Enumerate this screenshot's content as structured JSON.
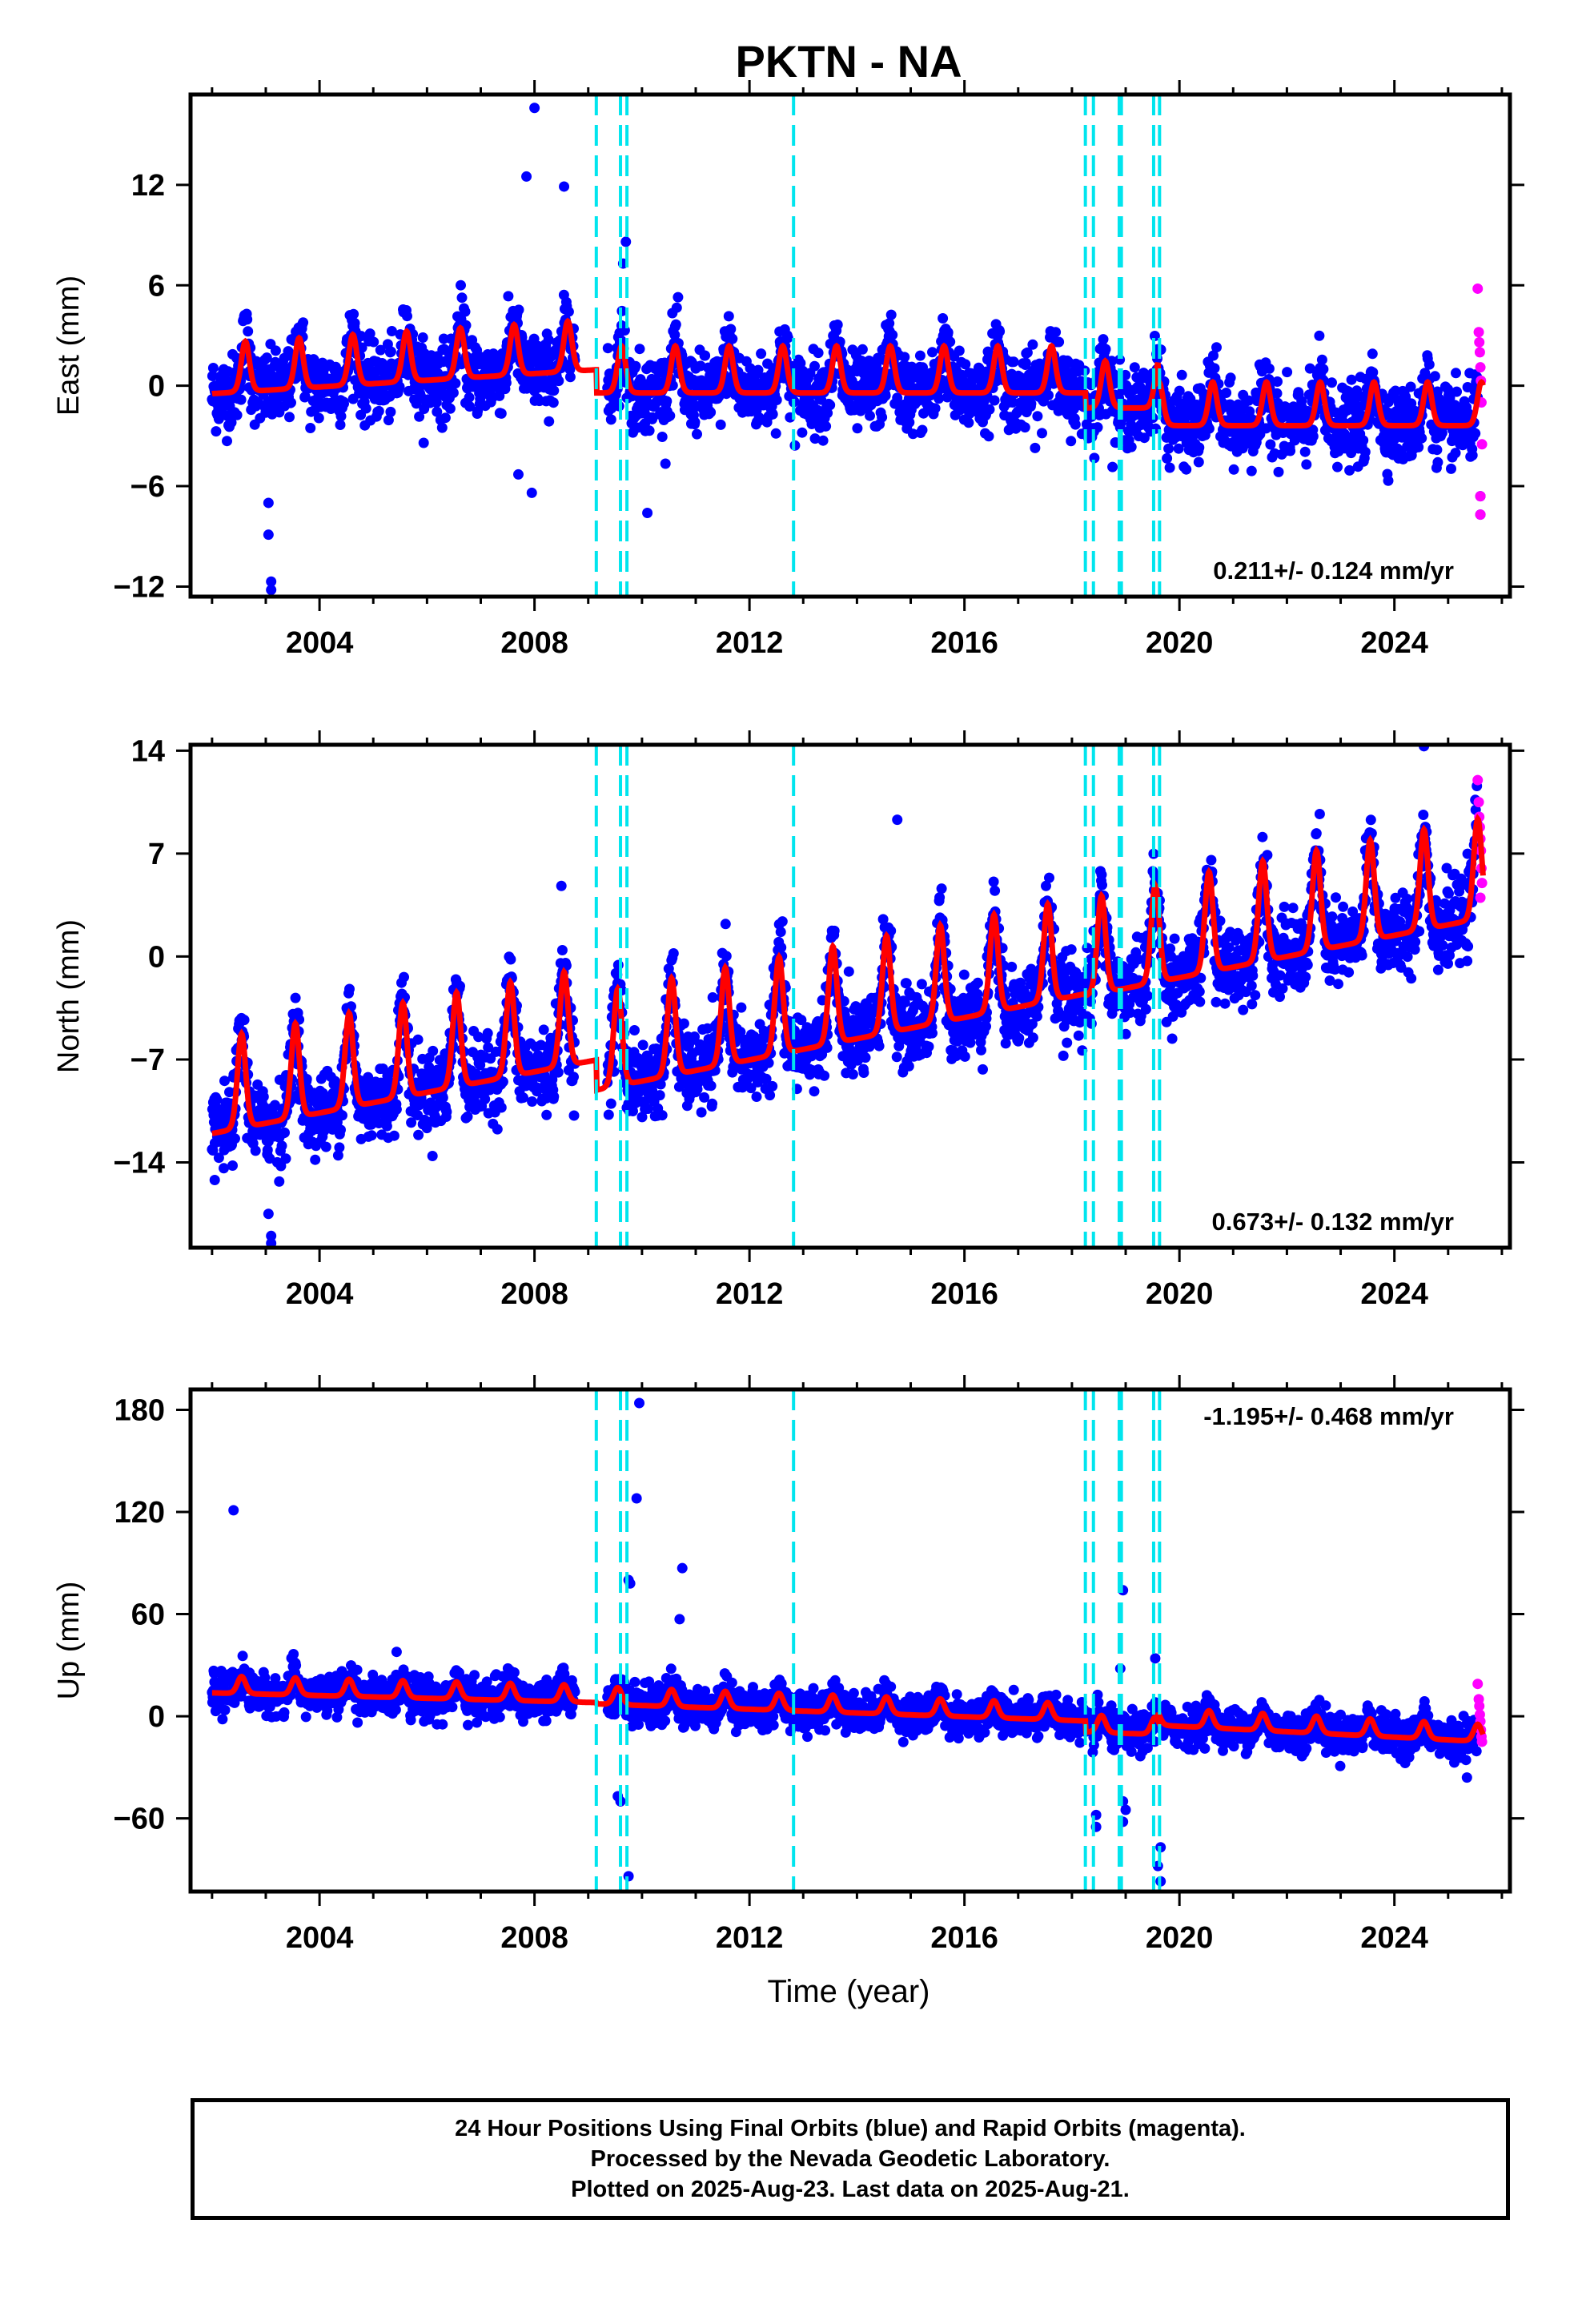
{
  "title": "PKTN - NA",
  "xlabel": "Time (year)",
  "x_ticks": [
    2004,
    2008,
    2012,
    2016,
    2020,
    2024
  ],
  "xlim": [
    2001.6,
    2026.15
  ],
  "colors": {
    "final": "#0000ff",
    "rapid": "#ff00ff",
    "model": "#ff0000",
    "steps": "#00e5ee",
    "frame": "#000000"
  },
  "step_epochs": [
    2009.15,
    2009.6,
    2009.72,
    2012.82,
    2018.25,
    2018.4,
    2018.88,
    2018.92,
    2019.52,
    2019.63
  ],
  "chart_data": [
    {
      "type": "scatter",
      "name": "east",
      "ylabel": "East (mm)",
      "ylim": [
        -12.6,
        17.4
      ],
      "yticks": [
        -12,
        -6,
        0,
        6,
        12
      ],
      "rate_label": "0.211+/- 0.124 mm/yr",
      "rate_position": "bottom-right",
      "model": {
        "segments": [
          {
            "start": 2002.0,
            "end": 2009.15,
            "offset": 0.2,
            "slope": 0.2,
            "amp": 1.5
          },
          {
            "start": 2009.15,
            "end": 2018.25,
            "offset": 0.2,
            "slope": 0.0,
            "amp": 1.4
          },
          {
            "start": 2018.25,
            "end": 2019.6,
            "offset": -0.7,
            "slope": 0.0,
            "amp": 1.4
          },
          {
            "start": 2019.6,
            "end": 2025.65,
            "offset": -1.8,
            "slope": 0.0,
            "amp": 1.3
          }
        ],
        "season_peak": 0.62,
        "scatter_sd": 1.1
      },
      "outliers": [
        {
          "x": 2008.0,
          "y": 16.6
        },
        {
          "x": 2007.85,
          "y": 12.5
        },
        {
          "x": 2008.55,
          "y": 11.9
        },
        {
          "x": 2003.05,
          "y": -7.0
        },
        {
          "x": 2003.05,
          "y": -8.9
        },
        {
          "x": 2003.1,
          "y": -11.7
        },
        {
          "x": 2003.1,
          "y": -12.2
        },
        {
          "x": 2007.7,
          "y": -5.3
        },
        {
          "x": 2007.95,
          "y": -6.4
        },
        {
          "x": 2009.7,
          "y": 8.6
        },
        {
          "x": 2009.65,
          "y": 7.3
        },
        {
          "x": 2010.1,
          "y": -7.6
        },
        {
          "x": 2025.6,
          "y": -7.7
        },
        {
          "x": 2025.6,
          "y": -6.6
        }
      ],
      "rapid_points": [
        {
          "x": 2025.55,
          "y": 5.8
        },
        {
          "x": 2025.57,
          "y": 3.2
        },
        {
          "x": 2025.58,
          "y": 2.6
        },
        {
          "x": 2025.59,
          "y": 2.0
        },
        {
          "x": 2025.6,
          "y": 1.1
        },
        {
          "x": 2025.61,
          "y": 0.3
        },
        {
          "x": 2025.62,
          "y": -1.0
        },
        {
          "x": 2025.63,
          "y": -3.5
        },
        {
          "x": 2025.6,
          "y": -6.6
        },
        {
          "x": 2025.6,
          "y": -7.7
        }
      ]
    },
    {
      "type": "scatter",
      "name": "north",
      "ylabel": "North (mm)",
      "ylim": [
        -19.8,
        14.4
      ],
      "yticks": [
        -14,
        -7,
        0,
        7,
        14
      ],
      "rate_label": "0.673+/- 0.132 mm/yr",
      "rate_position": "bottom-right",
      "model": {
        "segments": [
          {
            "start": 2002.0,
            "end": 2009.15,
            "offset": -10.6,
            "slope": 0.7,
            "amp": 3.2
          },
          {
            "start": 2009.15,
            "end": 2018.25,
            "offset": -7.6,
            "slope": 0.72,
            "amp": 3.3
          },
          {
            "start": 2018.25,
            "end": 2019.6,
            "offset": -1.2,
            "slope": 0.7,
            "amp": 3.3
          },
          {
            "start": 2019.6,
            "end": 2025.65,
            "offset": -0.2,
            "slope": 0.72,
            "amp": 3.4
          }
        ],
        "season_peak": 0.55,
        "scatter_sd": 1.3
      },
      "outliers": [
        {
          "x": 2003.05,
          "y": -17.5
        },
        {
          "x": 2003.1,
          "y": -19.0
        },
        {
          "x": 2003.1,
          "y": -19.5
        },
        {
          "x": 2002.05,
          "y": -15.2
        },
        {
          "x": 2008.5,
          "y": 4.8
        },
        {
          "x": 2014.75,
          "y": 9.3
        },
        {
          "x": 2024.55,
          "y": 14.3
        },
        {
          "x": 2003.25,
          "y": -15.3
        }
      ],
      "rapid_points": [
        {
          "x": 2025.55,
          "y": 12.0
        },
        {
          "x": 2025.57,
          "y": 10.5
        },
        {
          "x": 2025.58,
          "y": 9.5
        },
        {
          "x": 2025.59,
          "y": 8.8
        },
        {
          "x": 2025.6,
          "y": 8.0
        },
        {
          "x": 2025.61,
          "y": 7.2
        },
        {
          "x": 2025.62,
          "y": 6.0
        },
        {
          "x": 2025.63,
          "y": 5.0
        },
        {
          "x": 2025.6,
          "y": 4.0
        }
      ]
    },
    {
      "type": "scatter",
      "name": "up",
      "ylabel": "Up (mm)",
      "ylim": [
        -103,
        192
      ],
      "yticks": [
        -60,
        0,
        60,
        120,
        180
      ],
      "rate_label": "-1.195+/- 0.468 mm/yr",
      "rate_position": "top-right",
      "model": {
        "segments": [
          {
            "start": 2002.0,
            "end": 2009.15,
            "offset": 16.0,
            "slope": -0.8,
            "amp": 5.0
          },
          {
            "start": 2009.15,
            "end": 2018.25,
            "offset": 9.5,
            "slope": -1.1,
            "amp": 5.0
          },
          {
            "start": 2018.25,
            "end": 2019.6,
            "offset": -7.0,
            "slope": -1.1,
            "amp": 5.0
          },
          {
            "start": 2019.6,
            "end": 2025.65,
            "offset": -3.0,
            "slope": -1.6,
            "amp": 5.0
          }
        ],
        "season_peak": 0.55,
        "scatter_sd": 5.5
      },
      "outliers": [
        {
          "x": 2002.4,
          "y": 121
        },
        {
          "x": 2009.95,
          "y": 184
        },
        {
          "x": 2009.9,
          "y": 128
        },
        {
          "x": 2010.75,
          "y": 87
        },
        {
          "x": 2009.75,
          "y": 80
        },
        {
          "x": 2009.78,
          "y": 78
        },
        {
          "x": 2010.7,
          "y": 57
        },
        {
          "x": 2009.55,
          "y": -47
        },
        {
          "x": 2009.6,
          "y": -50
        },
        {
          "x": 2009.75,
          "y": -94
        },
        {
          "x": 2018.45,
          "y": -58
        },
        {
          "x": 2018.45,
          "y": -65
        },
        {
          "x": 2018.95,
          "y": 74
        },
        {
          "x": 2018.9,
          "y": 28
        },
        {
          "x": 2018.95,
          "y": -50
        },
        {
          "x": 2019.0,
          "y": -55
        },
        {
          "x": 2018.95,
          "y": -62
        },
        {
          "x": 2019.55,
          "y": 34
        },
        {
          "x": 2019.65,
          "y": -77
        },
        {
          "x": 2019.6,
          "y": -88
        },
        {
          "x": 2019.65,
          "y": -97
        },
        {
          "x": 2025.35,
          "y": -36
        }
      ],
      "rapid_points": [
        {
          "x": 2025.55,
          "y": 19
        },
        {
          "x": 2025.57,
          "y": 10
        },
        {
          "x": 2025.58,
          "y": 6
        },
        {
          "x": 2025.59,
          "y": 1
        },
        {
          "x": 2025.6,
          "y": -3
        },
        {
          "x": 2025.61,
          "y": -8
        },
        {
          "x": 2025.62,
          "y": -12
        },
        {
          "x": 2025.63,
          "y": -15
        }
      ]
    }
  ],
  "footer": {
    "line1": "24 Hour Positions Using Final Orbits (blue) and Rapid Orbits (magenta).",
    "line2": "Processed by the Nevada Geodetic Laboratory.",
    "line3": "Plotted on 2025-Aug-23. Last data on 2025-Aug-21."
  }
}
